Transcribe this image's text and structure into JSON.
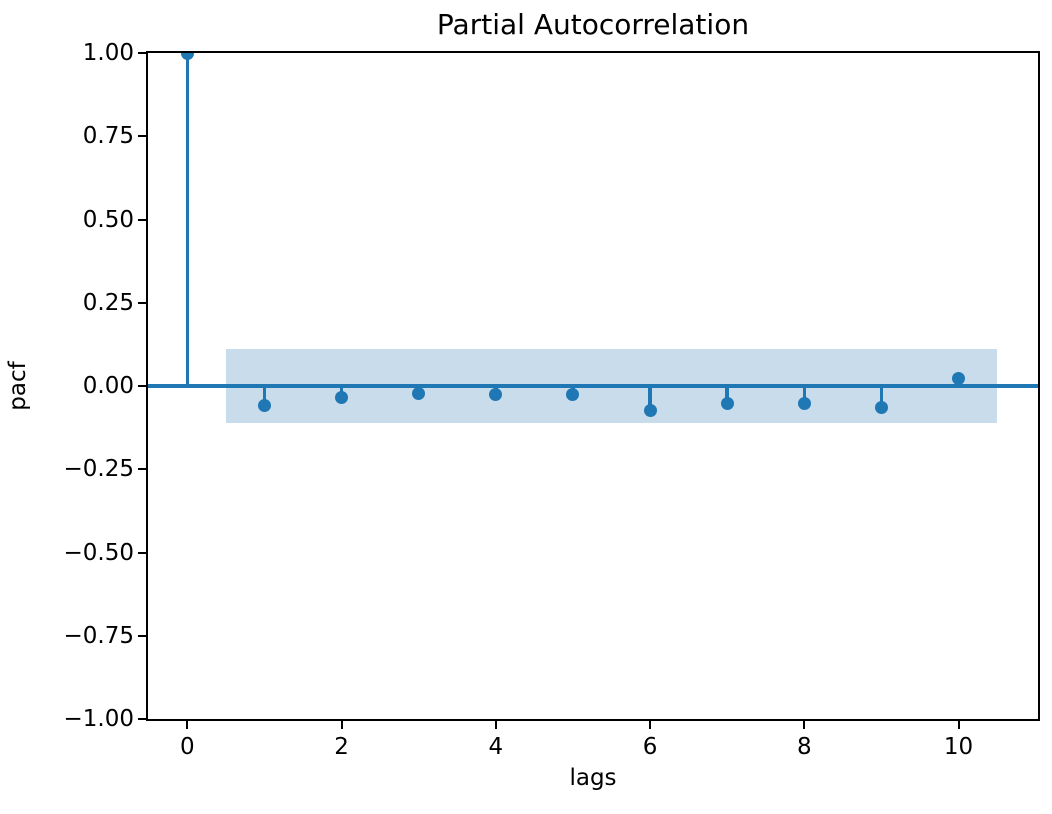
{
  "figure": {
    "background": "#ffffff"
  },
  "chart_data": {
    "type": "stem",
    "title": "Partial Autocorrelation",
    "xlabel": "lags",
    "ylabel": "pacf",
    "x": [
      0,
      1,
      2,
      3,
      4,
      5,
      6,
      7,
      8,
      9,
      10
    ],
    "values": [
      1.0,
      -0.058,
      -0.036,
      -0.022,
      -0.027,
      -0.025,
      -0.073,
      -0.053,
      -0.052,
      -0.066,
      0.022
    ],
    "baseline": 0.0,
    "confidence_band": {
      "x_start": 0.5,
      "x_end": 10.5,
      "lower": -0.11,
      "upper": 0.11
    },
    "xlim": [
      -0.51,
      11.03
    ],
    "ylim": [
      -1.0,
      1.0
    ],
    "grid": false,
    "legend": null,
    "xticks": [
      {
        "value": 0,
        "label": "0"
      },
      {
        "value": 2,
        "label": "2"
      },
      {
        "value": 4,
        "label": "4"
      },
      {
        "value": 6,
        "label": "6"
      },
      {
        "value": 8,
        "label": "8"
      },
      {
        "value": 10,
        "label": "10"
      }
    ],
    "yticks": [
      {
        "value": 1.0,
        "label": "1.00"
      },
      {
        "value": 0.75,
        "label": "0.75"
      },
      {
        "value": 0.5,
        "label": "0.50"
      },
      {
        "value": 0.25,
        "label": "0.25"
      },
      {
        "value": 0.0,
        "label": "0.00"
      },
      {
        "value": -0.25,
        "label": "−0.25"
      },
      {
        "value": -0.5,
        "label": "−0.50"
      },
      {
        "value": -0.75,
        "label": "−0.75"
      },
      {
        "value": -1.0,
        "label": "−1.00"
      }
    ],
    "colors": {
      "stem": "#1f77b4",
      "marker": "#1f77b4",
      "zero_line": "#1f77b4",
      "confidence_band": "#c9dcec",
      "spine": "#000000",
      "text": "#000000"
    }
  }
}
